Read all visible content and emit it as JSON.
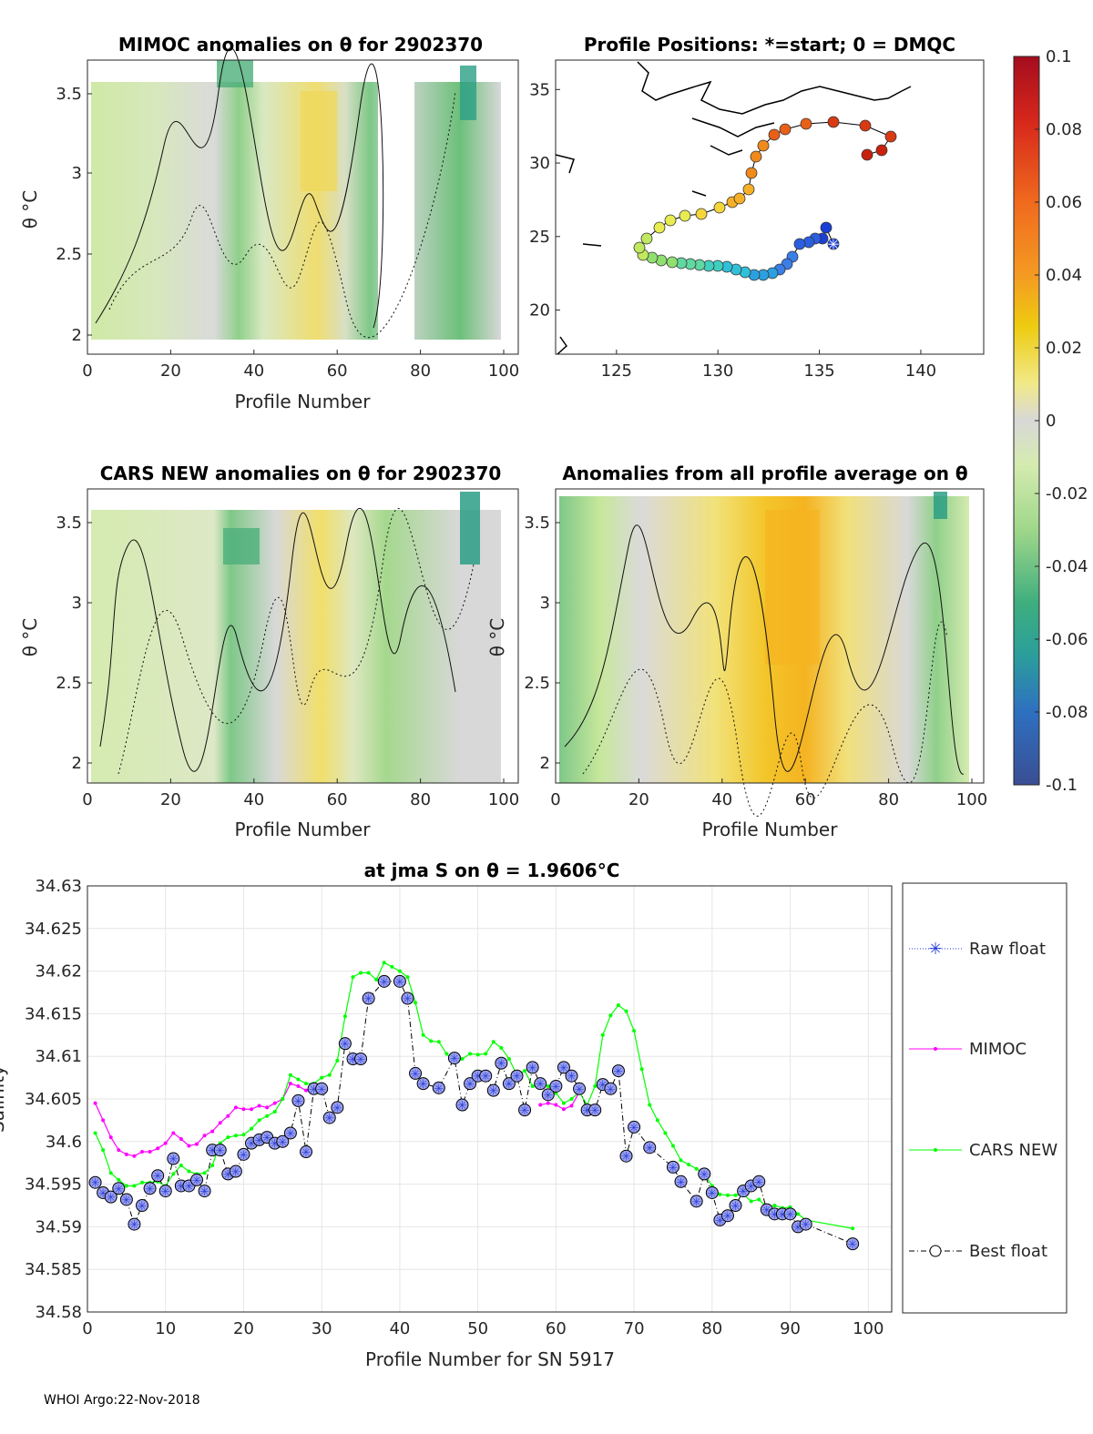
{
  "footer": "WHOI Argo:22-Nov-2018",
  "colorbar": {
    "ticks": [
      "0.1",
      "0.08",
      "0.06",
      "0.04",
      "0.02",
      "0",
      "-0.02",
      "-0.04",
      "-0.06",
      "-0.08",
      "-0.1"
    ],
    "colors": [
      "#a50d1e",
      "#d7281b",
      "#f06a1e",
      "#f49a22",
      "#eecb10",
      "#f1e98a",
      "#d8d8d8",
      "#c7e79b",
      "#6cc07a",
      "#2b9f85",
      "#2e78b8",
      "#3a4e94"
    ]
  },
  "panels": {
    "mimoc": {
      "title": "MIMOC anomalies on θ  for 2902370",
      "xlabel": "Profile Number",
      "ylabel": "θ °C",
      "xticks": [
        "0",
        "20",
        "40",
        "60",
        "80",
        "100"
      ],
      "yticks": [
        "3.5",
        "3",
        "2.5",
        "2"
      ]
    },
    "positions": {
      "title": "Profile Positions: *=start; 0 = DMQC",
      "xticks": [
        "125",
        "130",
        "135",
        "140"
      ],
      "yticks": [
        "35",
        "30",
        "25",
        "20"
      ]
    },
    "cars": {
      "title": "CARS NEW anomalies on θ for 2902370",
      "xlabel": "Profile Number",
      "ylabel": "θ °C",
      "xticks": [
        "0",
        "20",
        "40",
        "60",
        "80",
        "100"
      ],
      "yticks": [
        "3.5",
        "3",
        "2.5",
        "2"
      ]
    },
    "allavg": {
      "title": "Anomalies from all profile average on θ",
      "xlabel": "Profile Number",
      "ylabel": "θ °C",
      "xticks": [
        "0",
        "20",
        "40",
        "60",
        "80",
        "100"
      ],
      "yticks": [
        "3.5",
        "3",
        "2.5",
        "2"
      ]
    }
  },
  "chart_data": {
    "type": "line",
    "title": "at jma S on θ = 1.9606°C",
    "xlabel": "Profile Number for SN 5917",
    "ylabel": "Salinity",
    "xlim": [
      0,
      103
    ],
    "ylim": [
      34.58,
      34.63
    ],
    "xticks": [
      "0",
      "10",
      "20",
      "30",
      "40",
      "50",
      "60",
      "70",
      "80",
      "90",
      "100"
    ],
    "yticks": [
      "34.63",
      "34.625",
      "34.62",
      "34.615",
      "34.61",
      "34.605",
      "34.6",
      "34.595",
      "34.59",
      "34.585",
      "34.58"
    ],
    "legend": [
      "Raw float",
      "MIMOC",
      "CARS NEW",
      "Best float"
    ],
    "series": [
      {
        "name": "MIMOC",
        "color": "#ff00ff",
        "points": [
          [
            1,
            34.6045
          ],
          [
            2,
            34.6025
          ],
          [
            3,
            34.6005
          ],
          [
            4,
            34.599
          ],
          [
            5,
            34.5985
          ],
          [
            6,
            34.5983
          ],
          [
            7,
            34.5988
          ],
          [
            8,
            34.5988
          ],
          [
            9,
            34.5992
          ],
          [
            10,
            34.5998
          ],
          [
            11,
            34.601
          ],
          [
            12,
            34.6003
          ],
          [
            13,
            34.5995
          ],
          [
            14,
            34.5997
          ],
          [
            15,
            34.6007
          ],
          [
            16,
            34.6012
          ],
          [
            17,
            34.6022
          ],
          [
            18,
            34.603
          ],
          [
            19,
            34.604
          ],
          [
            20,
            34.6038
          ],
          [
            21,
            34.6038
          ],
          [
            22,
            34.6042
          ],
          [
            23,
            34.604
          ],
          [
            24,
            34.6045
          ],
          [
            25,
            34.605
          ],
          [
            26,
            34.6068
          ],
          [
            27,
            34.6065
          ],
          [
            28,
            34.606
          ],
          [
            29,
            34.6062
          ],
          [
            30,
            34.6065
          ],
          [
            58,
            34.6043
          ],
          [
            59,
            34.6045
          ],
          [
            60,
            34.6043
          ],
          [
            61,
            34.6038
          ],
          [
            62,
            34.6042
          ],
          [
            63,
            34.6058
          ]
        ]
      },
      {
        "name": "CARS NEW",
        "color": "#00ff00",
        "points": [
          [
            1,
            34.601
          ],
          [
            2,
            34.599
          ],
          [
            3,
            34.5963
          ],
          [
            4,
            34.5955
          ],
          [
            5,
            34.5948
          ],
          [
            6,
            34.5948
          ],
          [
            7,
            34.5952
          ],
          [
            8,
            34.5952
          ],
          [
            9,
            34.5953
          ],
          [
            10,
            34.5948
          ],
          [
            11,
            34.5962
          ],
          [
            12,
            34.5972
          ],
          [
            13,
            34.5965
          ],
          [
            14,
            34.5962
          ],
          [
            15,
            34.5963
          ],
          [
            16,
            34.5972
          ],
          [
            17,
            34.5998
          ],
          [
            18,
            34.6005
          ],
          [
            19,
            34.6007
          ],
          [
            20,
            34.6008
          ],
          [
            21,
            34.6015
          ],
          [
            22,
            34.6025
          ],
          [
            23,
            34.603
          ],
          [
            24,
            34.6035
          ],
          [
            25,
            34.605
          ],
          [
            26,
            34.6078
          ],
          [
            27,
            34.6073
          ],
          [
            28,
            34.6068
          ],
          [
            29,
            34.6068
          ],
          [
            30,
            34.6075
          ],
          [
            31,
            34.6078
          ],
          [
            32,
            34.6095
          ],
          [
            33,
            34.6147
          ],
          [
            34,
            34.6193
          ],
          [
            35,
            34.6198
          ],
          [
            36,
            34.6198
          ],
          [
            37,
            34.619
          ],
          [
            38,
            34.621
          ],
          [
            39,
            34.6205
          ],
          [
            40,
            34.62
          ],
          [
            41,
            34.6193
          ],
          [
            42,
            34.6163
          ],
          [
            43,
            34.6125
          ],
          [
            44,
            34.6118
          ],
          [
            45,
            34.6117
          ],
          [
            46,
            34.6103
          ],
          [
            47,
            34.6093
          ],
          [
            48,
            34.6097
          ],
          [
            49,
            34.6103
          ],
          [
            50,
            34.6102
          ],
          [
            51,
            34.6103
          ],
          [
            52,
            34.6117
          ],
          [
            53,
            34.611
          ],
          [
            54,
            34.6097
          ],
          [
            55,
            34.6078
          ],
          [
            56,
            34.6083
          ],
          [
            57,
            34.6065
          ],
          [
            58,
            34.6067
          ],
          [
            59,
            34.6065
          ],
          [
            60,
            34.6057
          ],
          [
            61,
            34.6045
          ],
          [
            62,
            34.605
          ],
          [
            63,
            34.6058
          ],
          [
            64,
            34.6043
          ],
          [
            65,
            34.6065
          ],
          [
            66,
            34.6125
          ],
          [
            67,
            34.6148
          ],
          [
            68,
            34.616
          ],
          [
            69,
            34.6153
          ],
          [
            70,
            34.613
          ],
          [
            71,
            34.6085
          ],
          [
            72,
            34.6043
          ],
          [
            73,
            34.6025
          ],
          [
            74,
            34.601
          ],
          [
            75,
            34.5995
          ],
          [
            76,
            34.5978
          ],
          [
            77,
            34.5973
          ],
          [
            78,
            34.5968
          ],
          [
            79,
            34.5962
          ],
          [
            80,
            34.5948
          ],
          [
            81,
            34.5938
          ],
          [
            82,
            34.5937
          ],
          [
            83,
            34.5937
          ],
          [
            84,
            34.5938
          ],
          [
            85,
            34.593
          ],
          [
            86,
            34.5932
          ],
          [
            87,
            34.5923
          ],
          [
            88,
            34.5925
          ],
          [
            89,
            34.5922
          ],
          [
            90,
            34.5923
          ],
          [
            91,
            34.5915
          ],
          [
            92,
            34.5908
          ],
          [
            98,
            34.5898
          ]
        ]
      },
      {
        "name": "Best float",
        "color": "#000000",
        "points": [
          [
            1,
            34.5952
          ],
          [
            2,
            34.594
          ],
          [
            3,
            34.5935
          ],
          [
            4,
            34.5945
          ],
          [
            5,
            34.5932
          ],
          [
            6,
            34.5903
          ],
          [
            7,
            34.5925
          ],
          [
            8,
            34.5945
          ],
          [
            9,
            34.596
          ],
          [
            10,
            34.5942
          ],
          [
            11,
            34.598
          ],
          [
            12,
            34.5948
          ],
          [
            13,
            34.5948
          ],
          [
            14,
            34.5955
          ],
          [
            15,
            34.5942
          ],
          [
            16,
            34.599
          ],
          [
            17,
            34.599
          ],
          [
            18,
            34.5962
          ],
          [
            19,
            34.5965
          ],
          [
            20,
            34.5985
          ],
          [
            21,
            34.5998
          ],
          [
            22,
            34.6002
          ],
          [
            23,
            34.6005
          ],
          [
            24,
            34.5998
          ],
          [
            25,
            34.6
          ],
          [
            26,
            34.601
          ],
          [
            27,
            34.6048
          ],
          [
            28,
            34.5988
          ],
          [
            29,
            34.6062
          ],
          [
            30,
            34.6062
          ],
          [
            31,
            34.6028
          ],
          [
            32,
            34.604
          ],
          [
            33,
            34.6115
          ],
          [
            34,
            34.6097
          ],
          [
            35,
            34.6097
          ],
          [
            36,
            34.6168
          ],
          [
            38,
            34.6188
          ],
          [
            40,
            34.6188
          ],
          [
            41,
            34.6168
          ],
          [
            42,
            34.608
          ],
          [
            43,
            34.6068
          ],
          [
            45,
            34.6063
          ],
          [
            47,
            34.6098
          ],
          [
            48,
            34.6043
          ],
          [
            49,
            34.6068
          ],
          [
            50,
            34.6077
          ],
          [
            51,
            34.6077
          ],
          [
            52,
            34.606
          ],
          [
            53,
            34.6092
          ],
          [
            54,
            34.6068
          ],
          [
            55,
            34.6077
          ],
          [
            56,
            34.6037
          ],
          [
            57,
            34.6087
          ],
          [
            58,
            34.6068
          ],
          [
            59,
            34.6055
          ],
          [
            60,
            34.6065
          ],
          [
            61,
            34.6087
          ],
          [
            62,
            34.6077
          ],
          [
            63,
            34.6062
          ],
          [
            64,
            34.6037
          ],
          [
            65,
            34.6037
          ],
          [
            66,
            34.6067
          ],
          [
            67,
            34.6062
          ],
          [
            68,
            34.6083
          ],
          [
            69,
            34.5983
          ],
          [
            70,
            34.6017
          ],
          [
            72,
            34.5993
          ],
          [
            75,
            34.597
          ],
          [
            76,
            34.5953
          ],
          [
            78,
            34.593
          ],
          [
            79,
            34.5962
          ],
          [
            80,
            34.594
          ],
          [
            81,
            34.5908
          ],
          [
            82,
            34.5913
          ],
          [
            83,
            34.5925
          ],
          [
            84,
            34.5942
          ],
          [
            85,
            34.5948
          ],
          [
            86,
            34.5953
          ],
          [
            87,
            34.592
          ],
          [
            88,
            34.5915
          ],
          [
            89,
            34.5915
          ],
          [
            90,
            34.5915
          ],
          [
            91,
            34.59
          ],
          [
            92,
            34.5903
          ],
          [
            98,
            34.588
          ]
        ]
      }
    ]
  }
}
